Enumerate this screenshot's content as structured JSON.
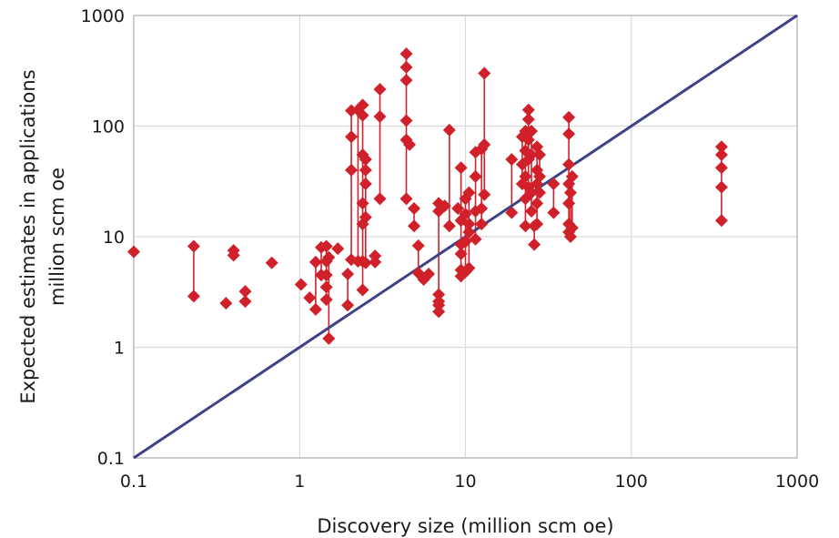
{
  "chart_data": {
    "type": "scatter",
    "title": "",
    "xlabel": "Discovery size (million scm oe)",
    "ylabel_lines": [
      "Expected estimates in applications",
      "million scm oe"
    ],
    "x_scale": "log",
    "y_scale": "log",
    "xlim": [
      0.1,
      1000
    ],
    "ylim": [
      0.1,
      1000
    ],
    "x_ticks": [
      "0.1",
      "1",
      "10",
      "100",
      "1000"
    ],
    "y_ticks": [
      "0.1",
      "1",
      "10",
      "100",
      "1000"
    ],
    "grid": true,
    "legend": "none",
    "reference_line": {
      "from": [
        0.1,
        0.1
      ],
      "to": [
        1000,
        1000
      ]
    },
    "colors": {
      "marker": "#d0202a",
      "reference_line": "#3e4186",
      "grid": "#d9d9d9",
      "frame": "#bfbfbf"
    },
    "discoveries": [
      {
        "x": 0.1,
        "y": [
          7.3
        ]
      },
      {
        "x": 0.23,
        "y": [
          8.2,
          2.9
        ]
      },
      {
        "x": 0.36,
        "y": [
          2.5
        ]
      },
      {
        "x": 0.4,
        "y": [
          7.5,
          6.8
        ]
      },
      {
        "x": 0.47,
        "y": [
          3.2,
          2.6
        ]
      },
      {
        "x": 0.68,
        "y": [
          5.8
        ]
      },
      {
        "x": 1.02,
        "y": [
          3.7
        ]
      },
      {
        "x": 1.15,
        "y": [
          2.8
        ]
      },
      {
        "x": 1.25,
        "y": [
          5.9,
          2.2
        ]
      },
      {
        "x": 1.35,
        "y": [
          8.0,
          4.5
        ]
      },
      {
        "x": 1.45,
        "y": [
          8.2,
          6.0,
          4.5,
          3.5,
          2.7
        ]
      },
      {
        "x": 1.5,
        "y": [
          6.5,
          1.2
        ]
      },
      {
        "x": 1.7,
        "y": [
          7.8
        ]
      },
      {
        "x": 1.95,
        "y": [
          4.6,
          2.4
        ]
      },
      {
        "x": 2.05,
        "y": [
          138,
          80,
          40,
          6.2
        ]
      },
      {
        "x": 2.25,
        "y": [
          140,
          6.0
        ]
      },
      {
        "x": 2.4,
        "y": [
          155,
          125,
          55,
          20,
          13,
          6.0,
          3.3
        ]
      },
      {
        "x": 2.5,
        "y": [
          50,
          40,
          30,
          15,
          5.8
        ]
      },
      {
        "x": 2.85,
        "y": [
          6.7,
          5.9
        ]
      },
      {
        "x": 3.05,
        "y": [
          215,
          122,
          22
        ]
      },
      {
        "x": 4.4,
        "y": [
          450,
          340,
          260,
          112,
          75,
          22
        ]
      },
      {
        "x": 4.6,
        "y": [
          68
        ]
      },
      {
        "x": 4.9,
        "y": [
          18,
          12.5
        ]
      },
      {
        "x": 5.2,
        "y": [
          8.3,
          4.7
        ]
      },
      {
        "x": 5.6,
        "y": [
          4.1
        ]
      },
      {
        "x": 6.0,
        "y": [
          4.6
        ]
      },
      {
        "x": 6.9,
        "y": [
          20,
          17,
          3.0,
          2.6,
          2.4,
          2.1
        ]
      },
      {
        "x": 7.5,
        "y": [
          19
        ]
      },
      {
        "x": 8.0,
        "y": [
          92,
          12.5
        ]
      },
      {
        "x": 9.0,
        "y": [
          18
        ]
      },
      {
        "x": 9.4,
        "y": [
          42,
          14,
          8.5,
          7.0,
          5.0,
          4.4
        ]
      },
      {
        "x": 10.0,
        "y": [
          22,
          16,
          9.0,
          4.8
        ]
      },
      {
        "x": 10.5,
        "y": [
          25,
          13,
          11,
          5.2
        ]
      },
      {
        "x": 11.5,
        "y": [
          58,
          35,
          17,
          9.5
        ]
      },
      {
        "x": 12.5,
        "y": [
          62,
          18,
          13
        ]
      },
      {
        "x": 13.0,
        "y": [
          300,
          68,
          24
        ]
      },
      {
        "x": 19.0,
        "y": [
          50,
          16.5
        ]
      },
      {
        "x": 22.0,
        "y": [
          80,
          45,
          30
        ]
      },
      {
        "x": 23.0,
        "y": [
          90,
          60,
          35,
          22,
          12.5
        ]
      },
      {
        "x": 24.0,
        "y": [
          140,
          115,
          75,
          50,
          28
        ]
      },
      {
        "x": 25.0,
        "y": [
          90,
          55,
          25,
          17
        ]
      },
      {
        "x": 26.0,
        "y": [
          12.5,
          8.5
        ]
      },
      {
        "x": 27.0,
        "y": [
          65,
          40,
          30,
          20,
          13
        ]
      },
      {
        "x": 28.0,
        "y": [
          55,
          35,
          25
        ]
      },
      {
        "x": 34.0,
        "y": [
          30,
          16.5
        ]
      },
      {
        "x": 42.0,
        "y": [
          120,
          85,
          45,
          30,
          20,
          13,
          11
        ]
      },
      {
        "x": 43.0,
        "y": [
          25,
          10
        ]
      },
      {
        "x": 44.0,
        "y": [
          35,
          12
        ]
      },
      {
        "x": 350.0,
        "y": [
          65,
          55,
          42,
          28,
          14
        ]
      }
    ]
  }
}
